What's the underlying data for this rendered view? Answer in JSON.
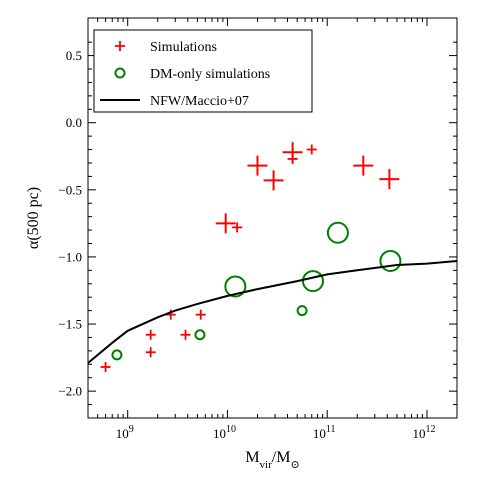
{
  "chart_data": {
    "type": "scatter",
    "xlabel": "M_vir/M_⊙",
    "xlabel_main": "M",
    "xlabel_sub": "vir",
    "xlabel_mid": "/M",
    "xlabel_sub2": "⊙",
    "ylabel": "α(500 pc)",
    "xscale": "log",
    "xlim": [
      400000000,
      2000000000000
    ],
    "ylim": [
      -2.2,
      0.78
    ],
    "legend_position": "top-left",
    "x_ticks": [
      {
        "value": 1000000000,
        "base": "10",
        "exp": "9"
      },
      {
        "value": 10000000000,
        "base": "10",
        "exp": "10"
      },
      {
        "value": 100000000000,
        "base": "10",
        "exp": "11"
      },
      {
        "value": 1000000000000,
        "base": "10",
        "exp": "12"
      }
    ],
    "y_ticks": [
      {
        "value": 0.5,
        "label": "0.5"
      },
      {
        "value": 0.0,
        "label": "0.0"
      },
      {
        "value": -0.5,
        "label": "−0.5"
      },
      {
        "value": -1.0,
        "label": "−1.0"
      },
      {
        "value": -1.5,
        "label": "−1.5"
      },
      {
        "value": -2.0,
        "label": "−2.0"
      }
    ],
    "series": [
      {
        "name": "Simulations",
        "marker": "plus",
        "color": "#ff0000",
        "points": [
          {
            "x": 600000000,
            "y": -1.82,
            "size": "small"
          },
          {
            "x": 1700000000,
            "y": -1.58,
            "size": "small"
          },
          {
            "x": 1700000000,
            "y": -1.71,
            "size": "small"
          },
          {
            "x": 2700000000,
            "y": -1.43,
            "size": "small"
          },
          {
            "x": 3800000000,
            "y": -1.58,
            "size": "small"
          },
          {
            "x": 5400000000,
            "y": -1.43,
            "size": "small"
          },
          {
            "x": 9600000000,
            "y": -0.75,
            "size": "large"
          },
          {
            "x": 12500000000,
            "y": -0.78,
            "size": "small"
          },
          {
            "x": 20000000000,
            "y": -0.32,
            "size": "large"
          },
          {
            "x": 29000000000,
            "y": -0.43,
            "size": "large"
          },
          {
            "x": 45000000000,
            "y": -0.22,
            "size": "large"
          },
          {
            "x": 45000000000,
            "y": -0.27,
            "size": "small"
          },
          {
            "x": 70000000000,
            "y": -0.2,
            "size": "small"
          },
          {
            "x": 230000000000,
            "y": -0.32,
            "size": "large"
          },
          {
            "x": 420000000000,
            "y": -0.42,
            "size": "large"
          }
        ]
      },
      {
        "name": "DM-only simulations",
        "marker": "circle",
        "color": "#008000",
        "points": [
          {
            "x": 780000000,
            "y": -1.73,
            "size": "small"
          },
          {
            "x": 5300000000,
            "y": -1.58,
            "size": "small"
          },
          {
            "x": 12000000000,
            "y": -1.22,
            "size": "large"
          },
          {
            "x": 56000000000,
            "y": -1.4,
            "size": "small"
          },
          {
            "x": 72000000000,
            "y": -1.18,
            "size": "large"
          },
          {
            "x": 128000000000,
            "y": -0.82,
            "size": "large"
          },
          {
            "x": 430000000000,
            "y": -1.03,
            "size": "large"
          }
        ]
      },
      {
        "name": "NFW/Maccio+07",
        "marker": "line",
        "color": "#000000",
        "points": [
          {
            "x": 400000000,
            "y": -1.79
          },
          {
            "x": 700000000,
            "y": -1.64
          },
          {
            "x": 1000000000,
            "y": -1.55
          },
          {
            "x": 2000000000,
            "y": -1.45
          },
          {
            "x": 3000000000,
            "y": -1.4
          },
          {
            "x": 5000000000,
            "y": -1.35
          },
          {
            "x": 10000000000,
            "y": -1.29
          },
          {
            "x": 20000000000,
            "y": -1.24
          },
          {
            "x": 50000000000,
            "y": -1.18
          },
          {
            "x": 100000000000,
            "y": -1.13
          },
          {
            "x": 200000000000,
            "y": -1.1
          },
          {
            "x": 500000000000,
            "y": -1.06
          },
          {
            "x": 1000000000000,
            "y": -1.05
          },
          {
            "x": 2000000000000,
            "y": -1.03
          }
        ]
      }
    ],
    "legend": [
      {
        "label": "Simulations"
      },
      {
        "label": "DM-only simulations"
      },
      {
        "label": "NFW/Maccio+07"
      }
    ]
  }
}
